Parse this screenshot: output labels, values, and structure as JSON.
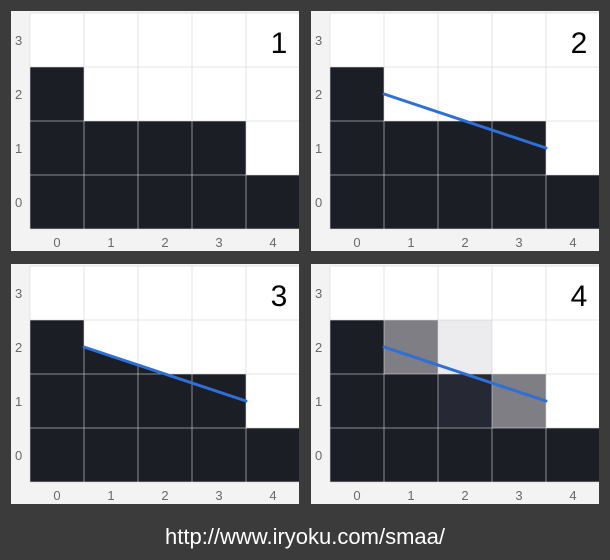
{
  "colors": {
    "dark": "#1c1e26",
    "white": "#ffffff",
    "line": "#2e6fd8",
    "gray_mid": "#7e7e84",
    "gray_light": "#ececee",
    "gray_dark": "#262833"
  },
  "x_tick_labels": [
    "0",
    "1",
    "2",
    "3",
    "4"
  ],
  "y_tick_labels": [
    "0",
    "1",
    "2",
    "3"
  ],
  "panels": [
    {
      "number": "1",
      "column_heights": [
        3,
        2,
        2,
        2,
        1
      ],
      "shaded_cells": [],
      "line": null
    },
    {
      "number": "2",
      "column_heights": [
        3,
        2,
        2,
        2,
        1
      ],
      "shaded_cells": [],
      "line": {
        "x1": 1.0,
        "y1": 2.5,
        "x2": 4.0,
        "y2": 1.5
      }
    },
    {
      "number": "3",
      "column_heights": [
        3,
        2,
        2,
        2,
        1
      ],
      "shaded_cells": [],
      "line": {
        "x1": 1.0,
        "y1": 2.5,
        "x2": 4.0,
        "y2": 1.5
      },
      "fill_under_line": true
    },
    {
      "number": "4",
      "column_heights": [
        3,
        2,
        2,
        2,
        1
      ],
      "shaded_cells": [
        {
          "col": 1,
          "row": 2,
          "shade": "gray_mid"
        },
        {
          "col": 2,
          "row": 2,
          "shade": "gray_light"
        },
        {
          "col": 2,
          "row": 1,
          "shade": "gray_dark"
        },
        {
          "col": 3,
          "row": 1,
          "shade": "gray_mid"
        }
      ],
      "line": {
        "x1": 1.0,
        "y1": 2.5,
        "x2": 4.0,
        "y2": 1.5
      }
    }
  ],
  "footer": {
    "url": "http://www.iryoku.com/smaa/"
  }
}
